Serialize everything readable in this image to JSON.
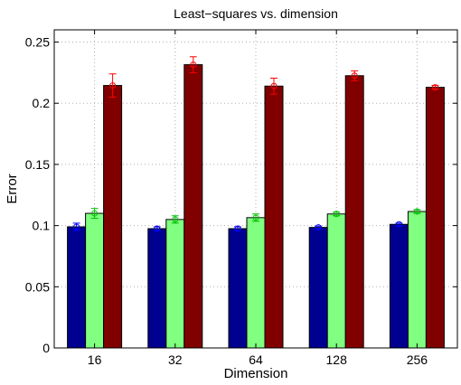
{
  "chart_data": {
    "type": "bar",
    "title": "Least−squares vs. dimension",
    "xlabel": "Dimension",
    "ylabel": "Error",
    "categories": [
      "16",
      "32",
      "64",
      "128",
      "256"
    ],
    "ylim": [
      0,
      0.26
    ],
    "yticks": [
      "0",
      "0.05",
      "0.1",
      "0.15",
      "0.2",
      "0.25"
    ],
    "grid": true,
    "series": [
      {
        "color": "#000090",
        "error_color": "#0000ff",
        "values": [
          0.099,
          0.0975,
          0.0975,
          0.0985,
          0.101
        ],
        "errors": [
          0.003,
          0.0015,
          0.0015,
          0.001,
          0.001
        ]
      },
      {
        "color": "#80ff80",
        "error_color": "#00c000",
        "values": [
          0.11,
          0.105,
          0.1065,
          0.1095,
          0.1115
        ],
        "errors": [
          0.004,
          0.003,
          0.003,
          0.0015,
          0.0015
        ]
      },
      {
        "color": "#800000",
        "error_color": "#ff0000",
        "values": [
          0.2145,
          0.2315,
          0.214,
          0.2225,
          0.213
        ],
        "errors": [
          0.0095,
          0.0065,
          0.0065,
          0.004,
          0.0015
        ]
      }
    ]
  }
}
